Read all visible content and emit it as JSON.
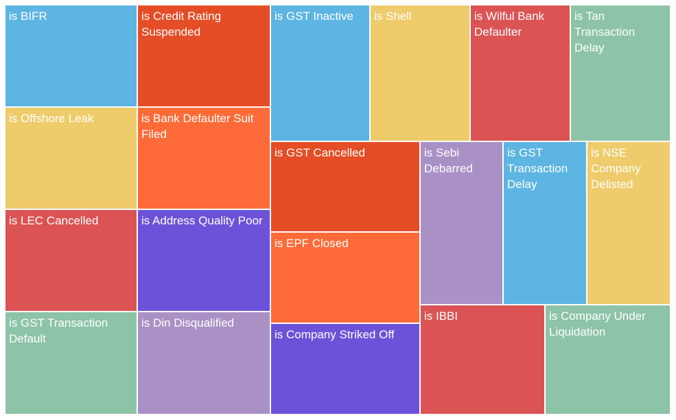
{
  "chart_data": {
    "type": "treemap",
    "title": "",
    "items": [
      {
        "label": "is BIFR",
        "value": 1,
        "color": "#5DB5E3"
      },
      {
        "label": "is Credit Rating Suspended",
        "value": 1,
        "color": "#E44D26"
      },
      {
        "label": "is Offshore Leak",
        "value": 1,
        "color": "#EECB6B"
      },
      {
        "label": "is Bank Defaulter Suit Filed",
        "value": 1,
        "color": "#FF6B38"
      },
      {
        "label": "is LEC Cancelled",
        "value": 1,
        "color": "#DB5353"
      },
      {
        "label": "is Address Quality Poor",
        "value": 1,
        "color": "#6C52D9"
      },
      {
        "label": "is GST Transaction Default",
        "value": 1,
        "color": "#8DC3A7"
      },
      {
        "label": "is Din Disqualified",
        "value": 1,
        "color": "#A991C6"
      },
      {
        "label": "is GST Inactive",
        "value": 1,
        "color": "#5DB5E3"
      },
      {
        "label": "is Shell",
        "value": 1,
        "color": "#EECB6B"
      },
      {
        "label": "is Wilful Bank Defaulter",
        "value": 1,
        "color": "#DB5353"
      },
      {
        "label": "is Tan Transaction Delay",
        "value": 1,
        "color": "#8DC3A7"
      },
      {
        "label": "is GST Cancelled",
        "value": 1,
        "color": "#E44D26"
      },
      {
        "label": "is EPF Closed",
        "value": 1,
        "color": "#FF6B38"
      },
      {
        "label": "is Company Striked Off",
        "value": 1,
        "color": "#6C52D9"
      },
      {
        "label": "is Sebi Debarred",
        "value": 1,
        "color": "#A991C6"
      },
      {
        "label": "is GST Transaction Delay",
        "value": 1,
        "color": "#5DB5E3"
      },
      {
        "label": "is NSE Company Delisted",
        "value": 1,
        "color": "#EECB6B"
      },
      {
        "label": "is IBBI",
        "value": 1,
        "color": "#DB5353"
      },
      {
        "label": "is Company Under Liquidation",
        "value": 1,
        "color": "#8DC3A7"
      }
    ]
  }
}
